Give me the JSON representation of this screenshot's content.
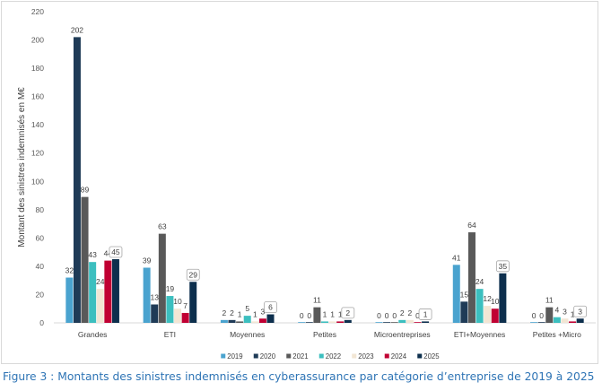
{
  "caption": "Figure 3 : Montants des sinistres indemnisés en cyberassurance par catégorie d’entreprise de 2019 à 2025",
  "chart_data": {
    "type": "bar",
    "title": "",
    "xlabel": "",
    "ylabel": "Montant des sinistres indemnisés en M€",
    "ylim": [
      0,
      220
    ],
    "yticks": [
      0,
      20,
      40,
      60,
      80,
      100,
      120,
      140,
      160,
      180,
      200,
      220
    ],
    "grid": false,
    "legend_position": "bottom",
    "categories": [
      "Grandes",
      "ETI",
      "Moyennes",
      "Petites",
      "Microentreprises",
      "ETI+Moyennes",
      "Petites +Micro"
    ],
    "series": [
      {
        "name": "2019",
        "color": "#4aa3cf",
        "values": [
          32,
          39,
          2,
          0,
          0,
          41,
          0
        ]
      },
      {
        "name": "2020",
        "color": "#1f3b57",
        "values": [
          202,
          13,
          2,
          0,
          0,
          15,
          0
        ]
      },
      {
        "name": "2021",
        "color": "#595959",
        "values": [
          89,
          63,
          1,
          11,
          0,
          64,
          11
        ]
      },
      {
        "name": "2022",
        "color": "#3cbfbf",
        "values": [
          43,
          19,
          5,
          1,
          2,
          24,
          4
        ]
      },
      {
        "name": "2023",
        "color": "#f2e6d4",
        "values": [
          24,
          10,
          1,
          1,
          2,
          12,
          3
        ]
      },
      {
        "name": "2024",
        "color": "#c00033",
        "values": [
          44,
          7,
          3,
          1,
          0,
          10,
          1
        ]
      },
      {
        "name": "2025",
        "color": "#0d2f4d",
        "values": [
          45,
          29,
          6,
          2,
          1,
          35,
          3
        ]
      }
    ],
    "boxed_labels": "2025"
  }
}
